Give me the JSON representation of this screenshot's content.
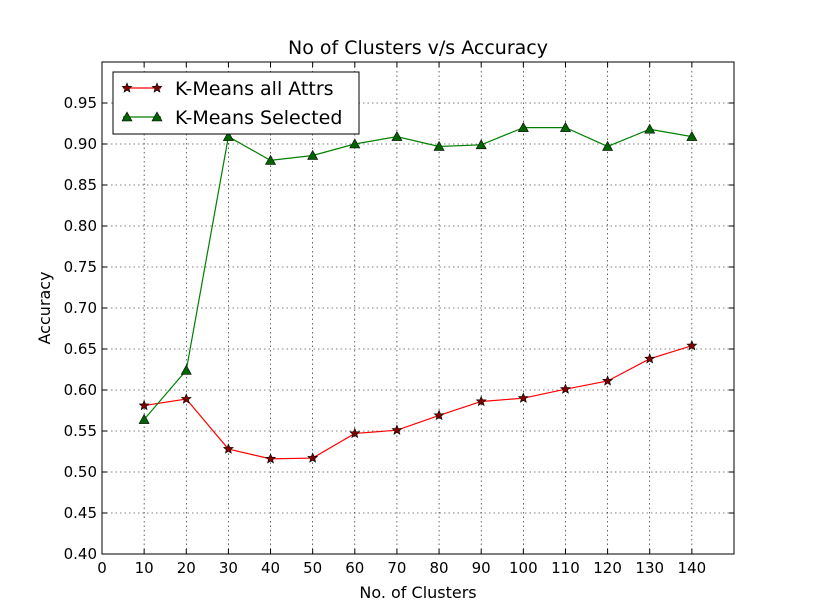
{
  "chart_data": {
    "type": "line",
    "title": "No of Clusters v/s Accuracy",
    "xlabel": "No. of Clusters",
    "ylabel": "Accuracy",
    "xlim": [
      0,
      150
    ],
    "ylim": [
      0.4,
      1.0
    ],
    "xticks": [
      0,
      10,
      20,
      30,
      40,
      50,
      60,
      70,
      80,
      90,
      100,
      110,
      120,
      130,
      140
    ],
    "xtick_labels": [
      "0",
      "10",
      "20",
      "30",
      "40",
      "50",
      "60",
      "70",
      "80",
      "90",
      "100",
      "110",
      "120",
      "130",
      "140"
    ],
    "yticks": [
      0.4,
      0.45,
      0.5,
      0.55,
      0.6,
      0.65,
      0.7,
      0.75,
      0.8,
      0.85,
      0.9,
      0.95
    ],
    "ytick_labels": [
      "0.40",
      "0.45",
      "0.50",
      "0.55",
      "0.60",
      "0.65",
      "0.70",
      "0.75",
      "0.80",
      "0.85",
      "0.90",
      "0.95"
    ],
    "grid": true,
    "legend_position": "top-left",
    "x": [
      10,
      20,
      30,
      40,
      50,
      60,
      70,
      80,
      90,
      100,
      110,
      120,
      130,
      140
    ],
    "series": [
      {
        "name": "K-Means all Attrs",
        "color": "#ff0000",
        "marker_color": "#800000",
        "marker": "star",
        "values": [
          0.581,
          0.589,
          0.528,
          0.516,
          0.517,
          0.547,
          0.551,
          0.569,
          0.586,
          0.59,
          0.601,
          0.611,
          0.638,
          0.654
        ]
      },
      {
        "name": "K-Means Selected",
        "color": "#008000",
        "marker_color": "#006400",
        "marker": "triangle",
        "values": [
          0.564,
          0.624,
          0.909,
          0.88,
          0.886,
          0.9,
          0.909,
          0.897,
          0.899,
          0.92,
          0.92,
          0.897,
          0.918,
          0.909
        ]
      }
    ]
  }
}
